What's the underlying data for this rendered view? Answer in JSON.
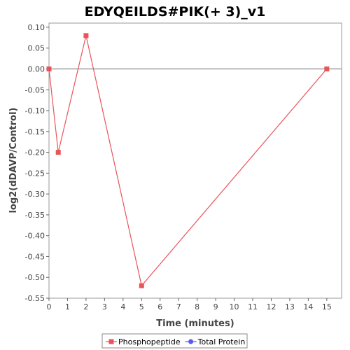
{
  "chart_data": {
    "type": "line",
    "title": "EDYQEILDS#PIK(+ 3)_v1",
    "xlabel": "Time (minutes)",
    "ylabel": "log2(dDAVP/Control)",
    "xlim": [
      0,
      15.8
    ],
    "ylim": [
      -0.55,
      0.11
    ],
    "xticks": [
      0,
      1,
      2,
      3,
      4,
      5,
      6,
      7,
      8,
      9,
      10,
      11,
      12,
      13,
      14,
      15
    ],
    "xtick_labels": [
      "0",
      "1",
      "2",
      "3",
      "4",
      "5",
      "6",
      "7",
      "8",
      "9",
      "10",
      "11",
      "12",
      "13",
      "14",
      "15"
    ],
    "yticks": [
      0.1,
      0.05,
      0.0,
      -0.05,
      -0.1,
      -0.15,
      -0.2,
      -0.25,
      -0.3,
      -0.35,
      -0.4,
      -0.45,
      -0.5,
      -0.55
    ],
    "ytick_labels": [
      "0.10",
      "0.05",
      "0.00",
      "-0.05",
      "-0.10",
      "-0.15",
      "-0.20",
      "-0.25",
      "-0.30",
      "-0.35",
      "-0.40",
      "-0.45",
      "-0.50",
      "-0.55"
    ],
    "grid": false,
    "zero_line": true,
    "legend_position": "bottom-center",
    "series": [
      {
        "name": "Phosphopeptide",
        "color": "#e8545a",
        "marker": "square",
        "x": [
          0,
          0.5,
          2,
          5,
          15
        ],
        "y": [
          0.0,
          -0.2,
          0.08,
          -0.52,
          0.0
        ]
      },
      {
        "name": "Total Protein",
        "color": "#5a5aee",
        "marker": "circle",
        "x": [],
        "y": []
      }
    ]
  }
}
